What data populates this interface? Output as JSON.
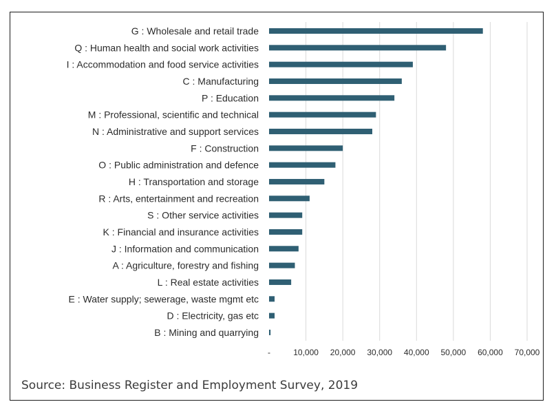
{
  "source": "Source: Business Register and Employment Survey, 2019",
  "chart_data": {
    "type": "bar",
    "orientation": "horizontal",
    "title": "",
    "xlabel": "",
    "ylabel": "",
    "xlim": [
      0,
      70000
    ],
    "grid": true,
    "legend": "none",
    "bar_color": "#2f5f73",
    "x_ticks": [
      "-",
      "10,000",
      "20,000",
      "30,000",
      "40,000",
      "50,000",
      "60,000",
      "70,000"
    ],
    "categories": [
      "G : Wholesale and retail trade",
      "Q : Human health and social work activities",
      "I : Accommodation and food service activities",
      "C : Manufacturing",
      "P : Education",
      "M : Professional, scientific and technical",
      "N : Administrative and support services",
      "F : Construction",
      "O : Public administration and defence",
      "H : Transportation and storage",
      "R : Arts, entertainment and recreation",
      "S : Other service activities",
      "K : Financial and insurance activities",
      "J : Information and communication",
      "A : Agriculture, forestry and fishing",
      "L : Real estate activities",
      "E : Water supply; sewerage, waste mgmt etc",
      "D : Electricity, gas etc",
      "B : Mining and quarrying"
    ],
    "values": [
      58000,
      48000,
      39000,
      36000,
      34000,
      29000,
      28000,
      20000,
      18000,
      15000,
      11000,
      9000,
      9000,
      8000,
      7000,
      6000,
      1500,
      1500,
      400
    ]
  }
}
